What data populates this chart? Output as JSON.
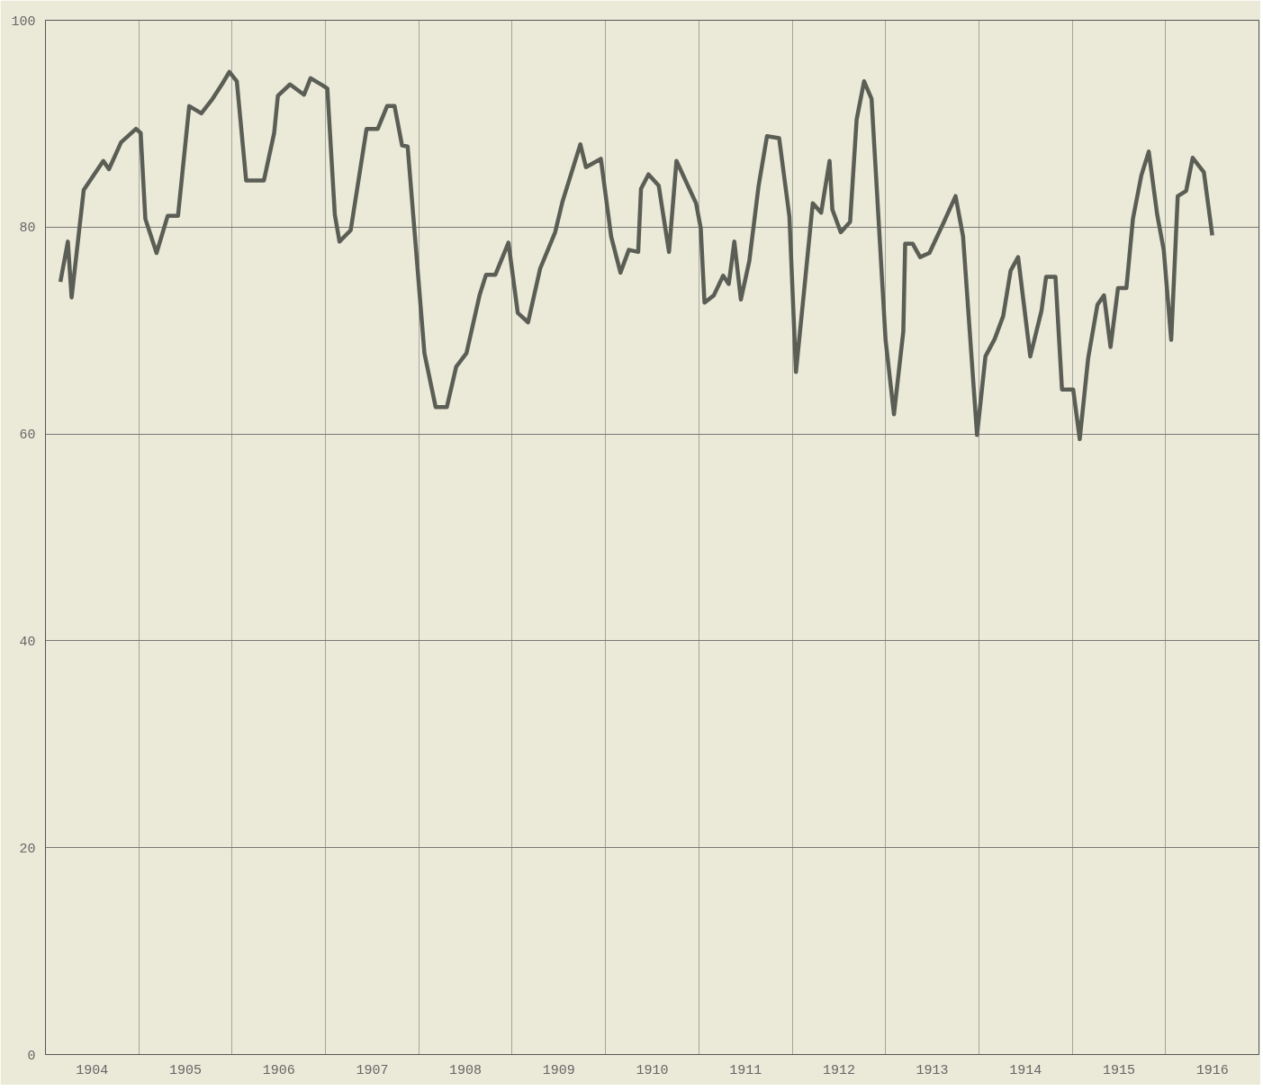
{
  "chart_data": {
    "type": "line",
    "grid": true,
    "line_style": "solid",
    "xlim": [
      1904.0,
      1917.0
    ],
    "ylim": [
      0,
      100
    ],
    "yticks": [
      0,
      20,
      40,
      60,
      80,
      100
    ],
    "xticks": [
      {
        "value": 1904.5,
        "label": "1904"
      },
      {
        "value": 1905,
        "label": null
      },
      {
        "value": 1905.5,
        "label": "1905"
      },
      {
        "value": 1906,
        "label": null
      },
      {
        "value": 1906.5,
        "label": "1906"
      },
      {
        "value": 1907,
        "label": null
      },
      {
        "value": 1907.5,
        "label": "1907"
      },
      {
        "value": 1908,
        "label": null
      },
      {
        "value": 1908.5,
        "label": "1908"
      },
      {
        "value": 1909,
        "label": null
      },
      {
        "value": 1909.5,
        "label": "1909"
      },
      {
        "value": 1910,
        "label": null
      },
      {
        "value": 1910.5,
        "label": "1910"
      },
      {
        "value": 1911,
        "label": null
      },
      {
        "value": 1911.5,
        "label": "1911"
      },
      {
        "value": 1912,
        "label": null
      },
      {
        "value": 1912.5,
        "label": "1912"
      },
      {
        "value": 1913,
        "label": null
      },
      {
        "value": 1913.5,
        "label": "1913"
      },
      {
        "value": 1914,
        "label": null
      },
      {
        "value": 1914.5,
        "label": "1914"
      },
      {
        "value": 1915,
        "label": null
      },
      {
        "value": 1915.5,
        "label": "1915"
      },
      {
        "value": 1916,
        "label": null
      },
      {
        "value": 1916.5,
        "label": "1916"
      }
    ],
    "x": [
      1904.16,
      1904.24,
      1904.28,
      1904.41,
      1904.62,
      1904.68,
      1904.81,
      1904.97,
      1905.02,
      1905.07,
      1905.19,
      1905.31,
      1905.42,
      1905.54,
      1905.67,
      1905.79,
      1905.89,
      1905.97,
      1906.05,
      1906.15,
      1906.34,
      1906.45,
      1906.49,
      1906.62,
      1906.77,
      1906.84,
      1906.97,
      1907.02,
      1907.1,
      1907.15,
      1907.27,
      1907.44,
      1907.56,
      1907.66,
      1907.74,
      1907.82,
      1907.88,
      1908.06,
      1908.18,
      1908.3,
      1908.4,
      1908.51,
      1908.65,
      1908.72,
      1908.82,
      1908.96,
      1909.06,
      1909.17,
      1909.3,
      1909.46,
      1909.54,
      1909.73,
      1909.79,
      1909.95,
      1910.06,
      1910.16,
      1910.25,
      1910.35,
      1910.38,
      1910.46,
      1910.57,
      1910.68,
      1910.76,
      1910.97,
      1911.02,
      1911.06,
      1911.16,
      1911.26,
      1911.32,
      1911.38,
      1911.45,
      1911.54,
      1911.64,
      1911.73,
      1911.86,
      1911.97,
      1912.04,
      1912.14,
      1912.22,
      1912.31,
      1912.4,
      1912.43,
      1912.52,
      1912.62,
      1912.69,
      1912.77,
      1912.85,
      1913.0,
      1913.09,
      1913.19,
      1913.21,
      1913.29,
      1913.37,
      1913.47,
      1913.62,
      1913.75,
      1913.83,
      1913.98,
      1914.07,
      1914.17,
      1914.26,
      1914.34,
      1914.42,
      1914.55,
      1914.67,
      1914.72,
      1914.82,
      1914.89,
      1915.01,
      1915.08,
      1915.17,
      1915.27,
      1915.34,
      1915.41,
      1915.49,
      1915.58,
      1915.65,
      1915.74,
      1915.82,
      1915.91,
      1915.98,
      1916.06,
      1916.13,
      1916.22,
      1916.29,
      1916.41,
      1916.5
    ],
    "series": [
      {
        "color": "#5a5e55",
        "values": [
          74.7,
          78.6,
          73.2,
          83.6,
          86.4,
          85.6,
          88.2,
          89.5,
          89.1,
          80.8,
          77.5,
          81.1,
          81.1,
          91.7,
          91.0,
          92.4,
          93.8,
          95.0,
          94.1,
          84.5,
          84.5,
          89.1,
          92.7,
          93.8,
          92.8,
          94.4,
          93.7,
          93.4,
          81.2,
          78.6,
          79.7,
          89.5,
          89.5,
          91.7,
          91.7,
          87.9,
          87.8,
          67.8,
          62.6,
          62.6,
          66.5,
          67.8,
          73.4,
          75.4,
          75.4,
          78.5,
          71.7,
          70.8,
          76.0,
          79.5,
          82.5,
          88.0,
          85.8,
          86.6,
          79.1,
          75.6,
          77.8,
          77.6,
          83.7,
          85.1,
          84.0,
          77.6,
          86.4,
          82.3,
          79.9,
          72.7,
          73.4,
          75.3,
          74.5,
          78.6,
          73.0,
          76.7,
          84.0,
          88.8,
          88.6,
          81.0,
          66.0,
          75.0,
          82.3,
          81.4,
          86.4,
          81.7,
          79.5,
          80.5,
          90.4,
          94.1,
          92.4,
          69.1,
          61.9,
          69.9,
          78.4,
          78.4,
          77.1,
          77.5,
          80.4,
          83.0,
          79.1,
          59.9,
          67.5,
          69.2,
          71.4,
          75.8,
          77.1,
          67.5,
          71.9,
          75.2,
          75.2,
          64.3,
          64.3,
          59.5,
          67.3,
          72.5,
          73.4,
          68.4,
          74.1,
          74.1,
          80.8,
          85.0,
          87.3,
          81.2,
          77.8,
          69.1,
          83.0,
          83.5,
          86.7,
          85.3,
          79.2
        ]
      }
    ]
  }
}
